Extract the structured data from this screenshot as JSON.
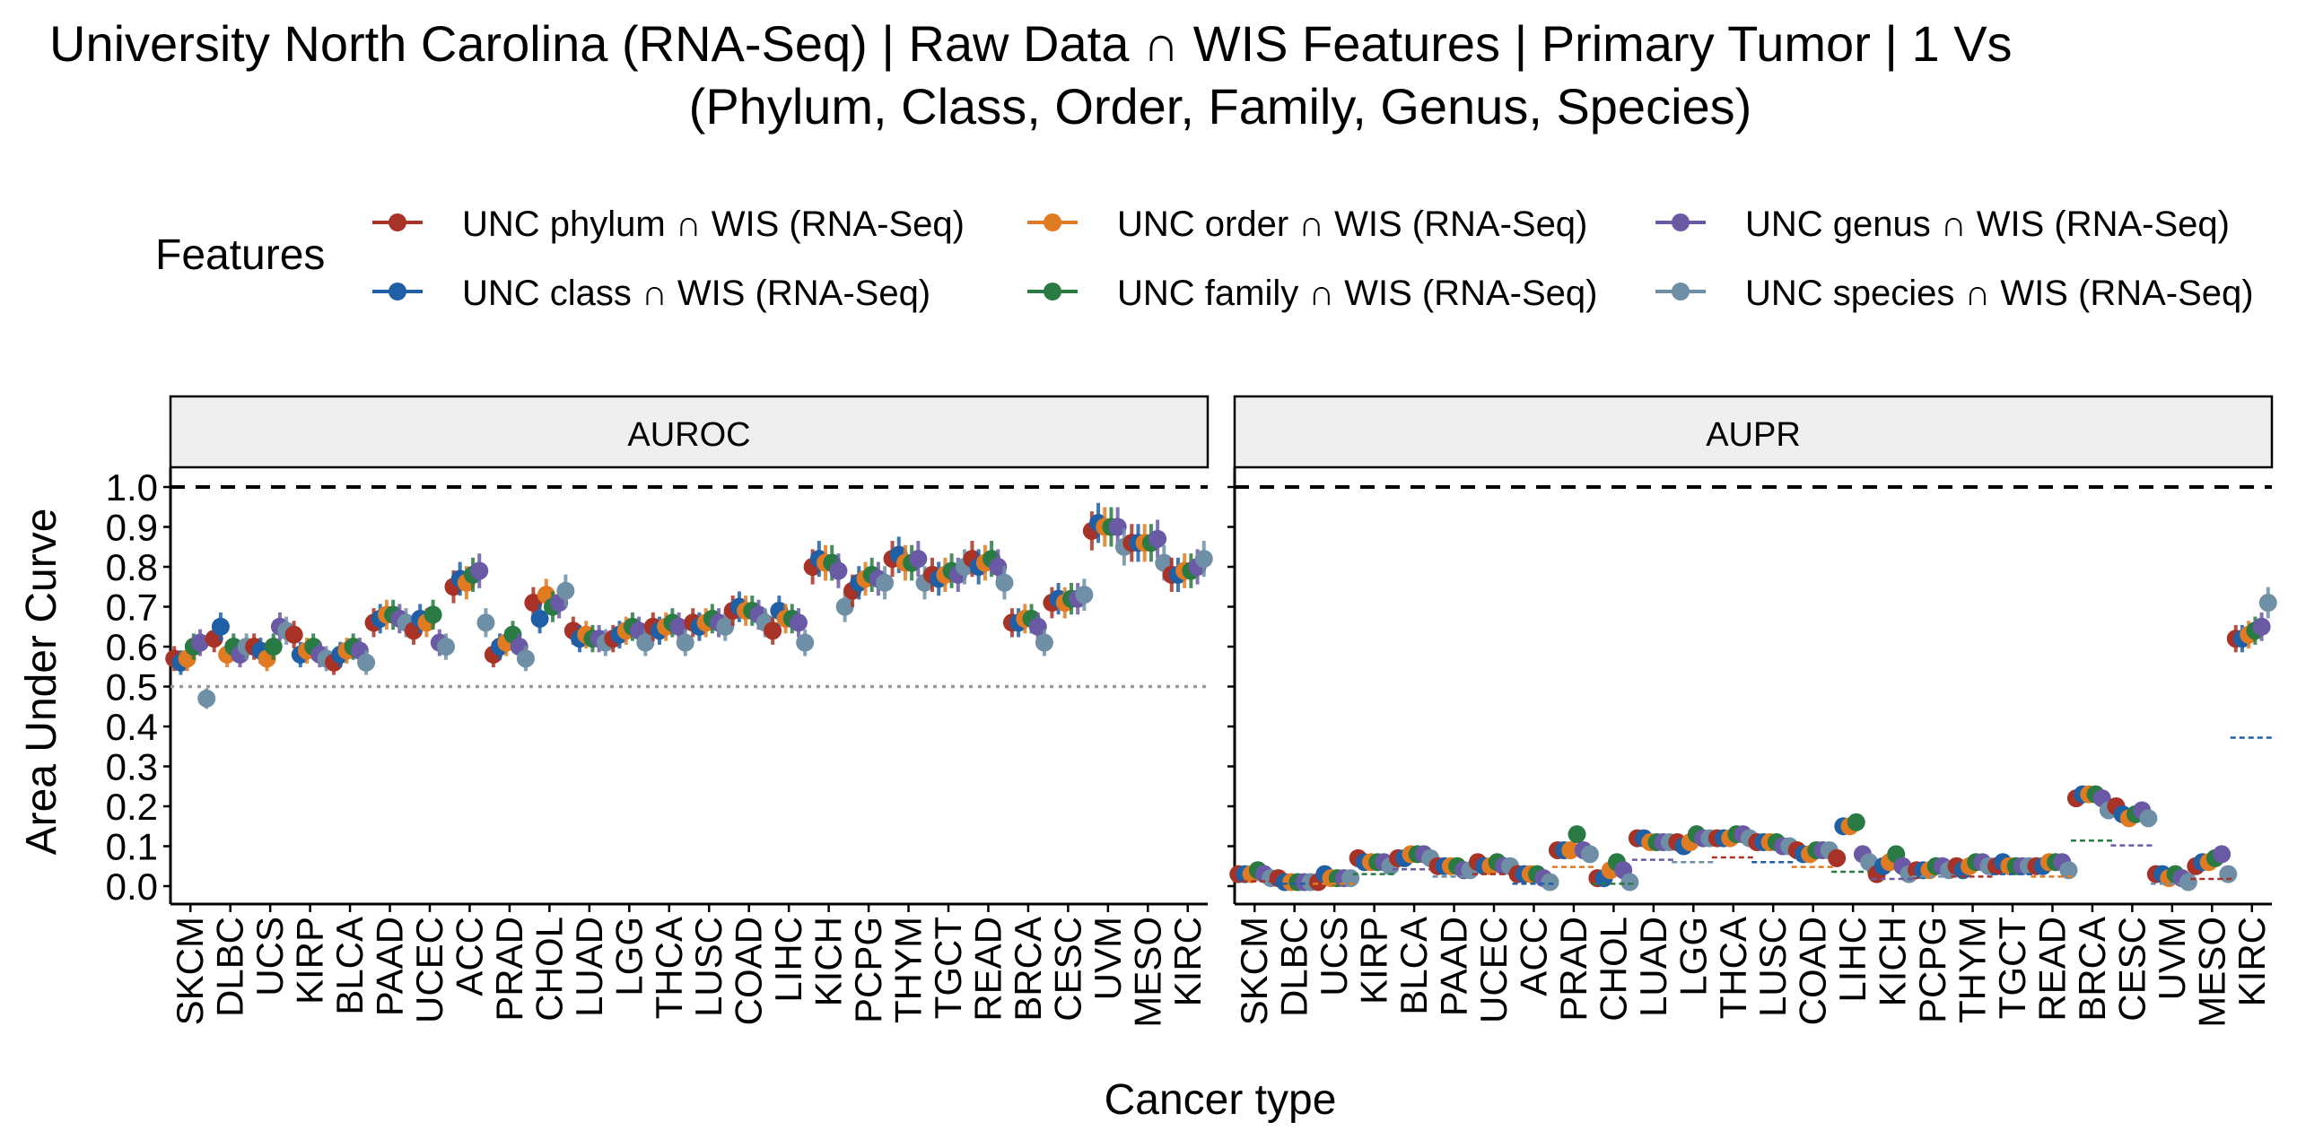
{
  "title_line1": "University North Carolina (RNA-Seq) | Raw Data ∩ WIS Features  | Primary Tumor | 1 Vs",
  "title_line2": "(Phylum, Class, Order, Family, Genus, Species)",
  "legend": {
    "title": "Features",
    "position": "top",
    "items": [
      {
        "label": "UNC phylum ∩ WIS (RNA-Seq)",
        "color": "#A93226"
      },
      {
        "label": "UNC class ∩ WIS (RNA-Seq)",
        "color": "#1F5FA6"
      },
      {
        "label": "UNC order ∩ WIS (RNA-Seq)",
        "color": "#E07B22"
      },
      {
        "label": "UNC family ∩ WIS (RNA-Seq)",
        "color": "#2A7A43"
      },
      {
        "label": "UNC genus ∩ WIS (RNA-Seq)",
        "color": "#6A5AA5"
      },
      {
        "label": "UNC species ∩ WIS (RNA-Seq)",
        "color": "#6E8FA5"
      }
    ]
  },
  "chart_data": {
    "type": "scatter",
    "xlabel": "Cancer type",
    "ylabel": "Area Under Curve",
    "ylim": [
      0,
      1
    ],
    "yticks": [
      "0.0",
      "0.1",
      "0.2",
      "0.3",
      "0.4",
      "0.5",
      "0.6",
      "0.7",
      "0.8",
      "0.9",
      "1.0"
    ],
    "reference_lines": [
      {
        "y": 1.0,
        "style": "dashed",
        "panels": "all"
      },
      {
        "y": 0.5,
        "style": "dotted",
        "panels": [
          "AUROC"
        ]
      }
    ],
    "series_names": [
      "UNC phylum ∩ WIS (RNA-Seq)",
      "UNC class ∩ WIS (RNA-Seq)",
      "UNC order ∩ WIS (RNA-Seq)",
      "UNC family ∩ WIS (RNA-Seq)",
      "UNC genus ∩ WIS (RNA-Seq)",
      "UNC species ∩ WIS (RNA-Seq)"
    ],
    "panels": [
      {
        "name": "AUROC",
        "categories": [
          "SKCM",
          "DLBC",
          "UCS",
          "KIRP",
          "BLCA",
          "PAAD",
          "UCEC",
          "ACC",
          "PRAD",
          "CHOL",
          "LUAD",
          "LGG",
          "THCA",
          "LUSC",
          "COAD",
          "LIHC",
          "KICH",
          "PCPG",
          "THYM",
          "TGCT",
          "READ",
          "BRCA",
          "CESC",
          "UVM",
          "MESO",
          "KIRC"
        ],
        "values": [
          [
            0.57,
            0.56,
            0.57,
            0.6,
            0.61,
            0.47
          ],
          [
            0.62,
            0.65,
            0.58,
            0.6,
            0.58,
            0.6
          ],
          [
            0.6,
            0.59,
            0.57,
            0.6,
            0.65,
            0.64
          ],
          [
            0.63,
            0.58,
            0.59,
            0.6,
            0.58,
            0.57
          ],
          [
            0.56,
            0.58,
            0.59,
            0.6,
            0.59,
            0.56
          ],
          [
            0.66,
            0.67,
            0.68,
            0.68,
            0.67,
            0.66
          ],
          [
            0.64,
            0.67,
            0.66,
            0.68,
            0.61,
            0.6
          ],
          [
            0.75,
            0.77,
            0.76,
            0.78,
            0.79,
            0.66
          ],
          [
            0.58,
            0.6,
            0.61,
            0.63,
            0.6,
            0.57
          ],
          [
            0.71,
            0.67,
            0.73,
            0.7,
            0.71,
            0.74
          ],
          [
            0.64,
            0.62,
            0.63,
            0.62,
            0.62,
            0.61
          ],
          [
            0.62,
            0.63,
            0.64,
            0.65,
            0.64,
            0.61
          ],
          [
            0.65,
            0.64,
            0.65,
            0.66,
            0.65,
            0.61
          ],
          [
            0.66,
            0.65,
            0.66,
            0.67,
            0.66,
            0.65
          ],
          [
            0.69,
            0.7,
            0.69,
            0.69,
            0.68,
            0.66
          ],
          [
            0.64,
            0.69,
            0.67,
            0.67,
            0.66,
            0.61
          ],
          [
            0.8,
            0.82,
            0.81,
            0.81,
            0.79,
            0.7
          ],
          [
            0.74,
            0.76,
            0.77,
            0.78,
            0.77,
            0.76
          ],
          [
            0.82,
            0.83,
            0.81,
            0.81,
            0.82,
            0.76
          ],
          [
            0.78,
            0.77,
            0.78,
            0.79,
            0.78,
            0.8
          ],
          [
            0.82,
            0.8,
            0.81,
            0.82,
            0.8,
            0.76
          ],
          [
            0.66,
            0.66,
            0.67,
            0.67,
            0.65,
            0.61
          ],
          [
            0.71,
            0.72,
            0.71,
            0.72,
            0.72,
            0.73
          ],
          [
            0.89,
            0.91,
            0.9,
            0.9,
            0.9,
            0.85
          ],
          [
            0.86,
            0.86,
            0.86,
            0.86,
            0.87,
            0.81
          ],
          [
            0.78,
            0.78,
            0.79,
            0.79,
            0.8,
            0.82
          ]
        ]
      },
      {
        "name": "AUPR",
        "categories": [
          "SKCM",
          "DLBC",
          "UCS",
          "KIRP",
          "BLCA",
          "PAAD",
          "UCEC",
          "ACC",
          "PRAD",
          "CHOL",
          "LUAD",
          "LGG",
          "THCA",
          "LUSC",
          "COAD",
          "LIHC",
          "KICH",
          "PCPG",
          "THYM",
          "TGCT",
          "READ",
          "BRCA",
          "CESC",
          "UVM",
          "MESO",
          "KIRC"
        ],
        "values": [
          [
            0.03,
            0.03,
            0.03,
            0.04,
            0.03,
            0.02
          ],
          [
            0.02,
            0.01,
            0.01,
            0.01,
            0.01,
            0.01
          ],
          [
            0.01,
            0.03,
            0.02,
            0.02,
            0.02,
            0.02
          ],
          [
            0.07,
            0.06,
            0.06,
            0.06,
            0.06,
            0.05
          ],
          [
            0.07,
            0.07,
            0.08,
            0.08,
            0.08,
            0.07
          ],
          [
            0.05,
            0.05,
            0.05,
            0.05,
            0.04,
            0.04
          ],
          [
            0.06,
            0.05,
            0.05,
            0.06,
            0.05,
            0.05
          ],
          [
            0.03,
            0.03,
            0.03,
            0.03,
            0.02,
            0.01
          ],
          [
            0.09,
            0.09,
            0.09,
            0.13,
            0.09,
            0.08
          ],
          [
            0.02,
            0.02,
            0.04,
            0.06,
            0.04,
            0.01
          ],
          [
            0.12,
            0.12,
            0.11,
            0.11,
            0.11,
            0.11
          ],
          [
            0.11,
            0.1,
            0.11,
            0.13,
            0.12,
            0.12
          ],
          [
            0.12,
            0.12,
            0.12,
            0.13,
            0.13,
            0.12
          ],
          [
            0.11,
            0.11,
            0.11,
            0.11,
            0.1,
            0.1
          ],
          [
            0.09,
            0.08,
            0.08,
            0.09,
            0.09,
            0.09
          ],
          [
            0.07,
            0.15,
            0.15,
            0.16,
            0.08,
            0.06
          ],
          [
            0.03,
            0.05,
            0.06,
            0.08,
            0.05,
            0.03
          ],
          [
            0.04,
            0.04,
            0.04,
            0.05,
            0.05,
            0.04
          ],
          [
            0.05,
            0.04,
            0.05,
            0.06,
            0.06,
            0.05
          ],
          [
            0.05,
            0.06,
            0.05,
            0.05,
            0.05,
            0.05
          ],
          [
            0.05,
            0.05,
            0.06,
            0.06,
            0.06,
            0.04
          ],
          [
            0.22,
            0.23,
            0.23,
            0.23,
            0.22,
            0.19
          ],
          [
            0.2,
            0.18,
            0.17,
            0.18,
            0.19,
            0.17
          ],
          [
            0.03,
            0.03,
            0.02,
            0.03,
            0.02,
            0.01
          ],
          [
            0.05,
            0.06,
            0.06,
            0.07,
            0.08,
            0.03
          ],
          [
            0.62,
            0.62,
            0.63,
            0.64,
            0.65,
            0.71
          ]
        ]
      }
    ]
  }
}
